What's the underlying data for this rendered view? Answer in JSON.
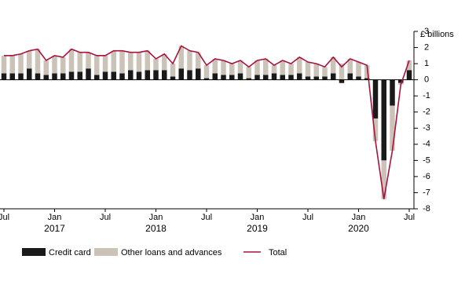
{
  "chart_data": {
    "type": "bar",
    "y_label": "£ billions",
    "categories": [
      "Jul",
      null,
      null,
      null,
      null,
      null,
      "Jan",
      null,
      null,
      null,
      null,
      null,
      "Jul",
      null,
      null,
      null,
      null,
      null,
      "Jan",
      null,
      null,
      null,
      null,
      null,
      "Jul",
      null,
      null,
      null,
      null,
      null,
      "Jan",
      null,
      null,
      null,
      null,
      null,
      "Jul",
      null,
      null,
      null,
      null,
      null,
      "Jan",
      null,
      null,
      null,
      null,
      null,
      "Jul"
    ],
    "years": [
      "2017",
      "2018",
      "2019",
      "2020"
    ],
    "series": [
      {
        "name": "Credit card",
        "type": "bar",
        "color": "#1a1a1a",
        "values": [
          0.4,
          0.4,
          0.4,
          0.7,
          0.4,
          0.3,
          0.4,
          0.4,
          0.5,
          0.5,
          0.7,
          0.3,
          0.5,
          0.5,
          0.4,
          0.6,
          0.5,
          0.6,
          0.6,
          0.6,
          0.2,
          0.7,
          0.6,
          0.7,
          0.1,
          0.4,
          0.3,
          0.3,
          0.4,
          0.1,
          0.3,
          0.3,
          0.4,
          0.3,
          0.3,
          0.4,
          0.2,
          0.2,
          0.2,
          0.4,
          -0.2,
          0.4,
          0.2,
          0.1,
          -2.4,
          -5.0,
          -1.6,
          -0.2,
          0.6
        ]
      },
      {
        "name": "Other loans and advances",
        "type": "bar",
        "color": "#cbc3b8",
        "values": [
          1.1,
          1.1,
          1.2,
          1.1,
          1.5,
          0.9,
          1.1,
          1.0,
          1.4,
          1.2,
          1.0,
          1.2,
          1.0,
          1.3,
          1.4,
          1.1,
          1.2,
          1.2,
          0.7,
          1.0,
          0.8,
          1.4,
          1.2,
          1.0,
          0.8,
          0.9,
          0.9,
          0.7,
          0.8,
          0.7,
          0.9,
          1.0,
          0.5,
          0.9,
          0.7,
          1.0,
          0.9,
          0.8,
          0.6,
          1.0,
          1.0,
          0.9,
          0.9,
          0.8,
          -1.4,
          -2.4,
          -2.8,
          -0.1,
          0.6
        ]
      },
      {
        "name": "Total",
        "type": "line",
        "color": "#a8123e",
        "values": [
          1.5,
          1.5,
          1.6,
          1.8,
          1.9,
          1.2,
          1.5,
          1.4,
          1.9,
          1.7,
          1.7,
          1.5,
          1.5,
          1.8,
          1.8,
          1.7,
          1.7,
          1.8,
          1.3,
          1.6,
          1.0,
          2.1,
          1.8,
          1.7,
          0.9,
          1.3,
          1.2,
          1.0,
          1.2,
          0.8,
          1.2,
          1.3,
          0.9,
          1.2,
          1.0,
          1.4,
          1.1,
          1.0,
          0.8,
          1.4,
          0.8,
          1.3,
          1.1,
          0.9,
          -3.8,
          -7.4,
          -4.4,
          -0.3,
          1.2
        ]
      }
    ],
    "ylim": [
      -8,
      3
    ],
    "yticks": [
      3,
      2,
      1,
      0,
      -1,
      -2,
      -3,
      -4,
      -5,
      -6,
      -7,
      -8
    ]
  }
}
